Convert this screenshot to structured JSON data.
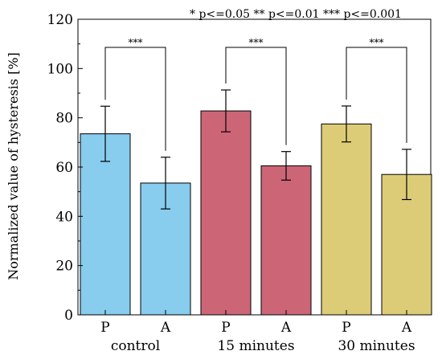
{
  "chart_data": {
    "type": "bar",
    "ylabel": "Normalized value of hysteresis [%]",
    "ylim": [
      0,
      120
    ],
    "yticks": [
      0,
      20,
      40,
      60,
      80,
      100,
      120
    ],
    "grid": false,
    "legend_note": "* p<=0.05   ** p<=0.01   *** p<=0.001",
    "groups": [
      {
        "label": "control",
        "color": "#88ccee",
        "bars": [
          {
            "label": "P",
            "value": 73.5,
            "error": 11.2
          },
          {
            "label": "A",
            "value": 53.5,
            "error": 10.5
          }
        ],
        "significance": "***"
      },
      {
        "label": "15 minutes",
        "color": "#cc6677",
        "bars": [
          {
            "label": "P",
            "value": 82.8,
            "error": 8.5
          },
          {
            "label": "A",
            "value": 60.5,
            "error": 5.8
          }
        ],
        "significance": "***"
      },
      {
        "label": "30 minutes",
        "color": "#ddcc77",
        "bars": [
          {
            "label": "P",
            "value": 77.5,
            "error": 7.3
          },
          {
            "label": "A",
            "value": 57.0,
            "error": 10.2
          }
        ],
        "significance": "***"
      }
    ]
  }
}
